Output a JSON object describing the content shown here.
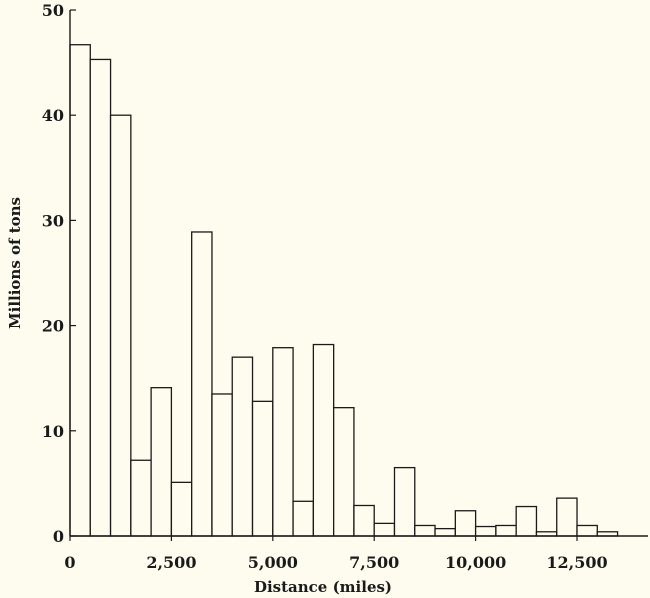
{
  "chart_data": {
    "type": "bar",
    "title": "",
    "xlabel": "Distance (miles)",
    "ylabel": "Millions of tons",
    "bin_width": 500,
    "x_start": 0,
    "xlim": [
      0,
      14250
    ],
    "ylim": [
      0,
      50
    ],
    "x_ticks": [
      0,
      2500,
      5000,
      7500,
      10000,
      12500
    ],
    "x_tick_labels": [
      "0",
      "2,500",
      "5,000",
      "7,500",
      "10,000",
      "12,500"
    ],
    "y_ticks": [
      0,
      10,
      20,
      30,
      40,
      50
    ],
    "y_tick_labels": [
      "0",
      "10",
      "20",
      "30",
      "40",
      "50"
    ],
    "values": [
      46.7,
      45.3,
      40.0,
      7.2,
      14.1,
      5.1,
      28.9,
      13.5,
      17.0,
      12.8,
      17.9,
      3.3,
      18.2,
      12.2,
      2.9,
      1.2,
      6.5,
      1.0,
      0.7,
      2.4,
      0.9,
      1.0,
      2.8,
      0.4,
      3.6,
      1.0,
      0.4
    ],
    "grid": false,
    "legend": "none"
  }
}
